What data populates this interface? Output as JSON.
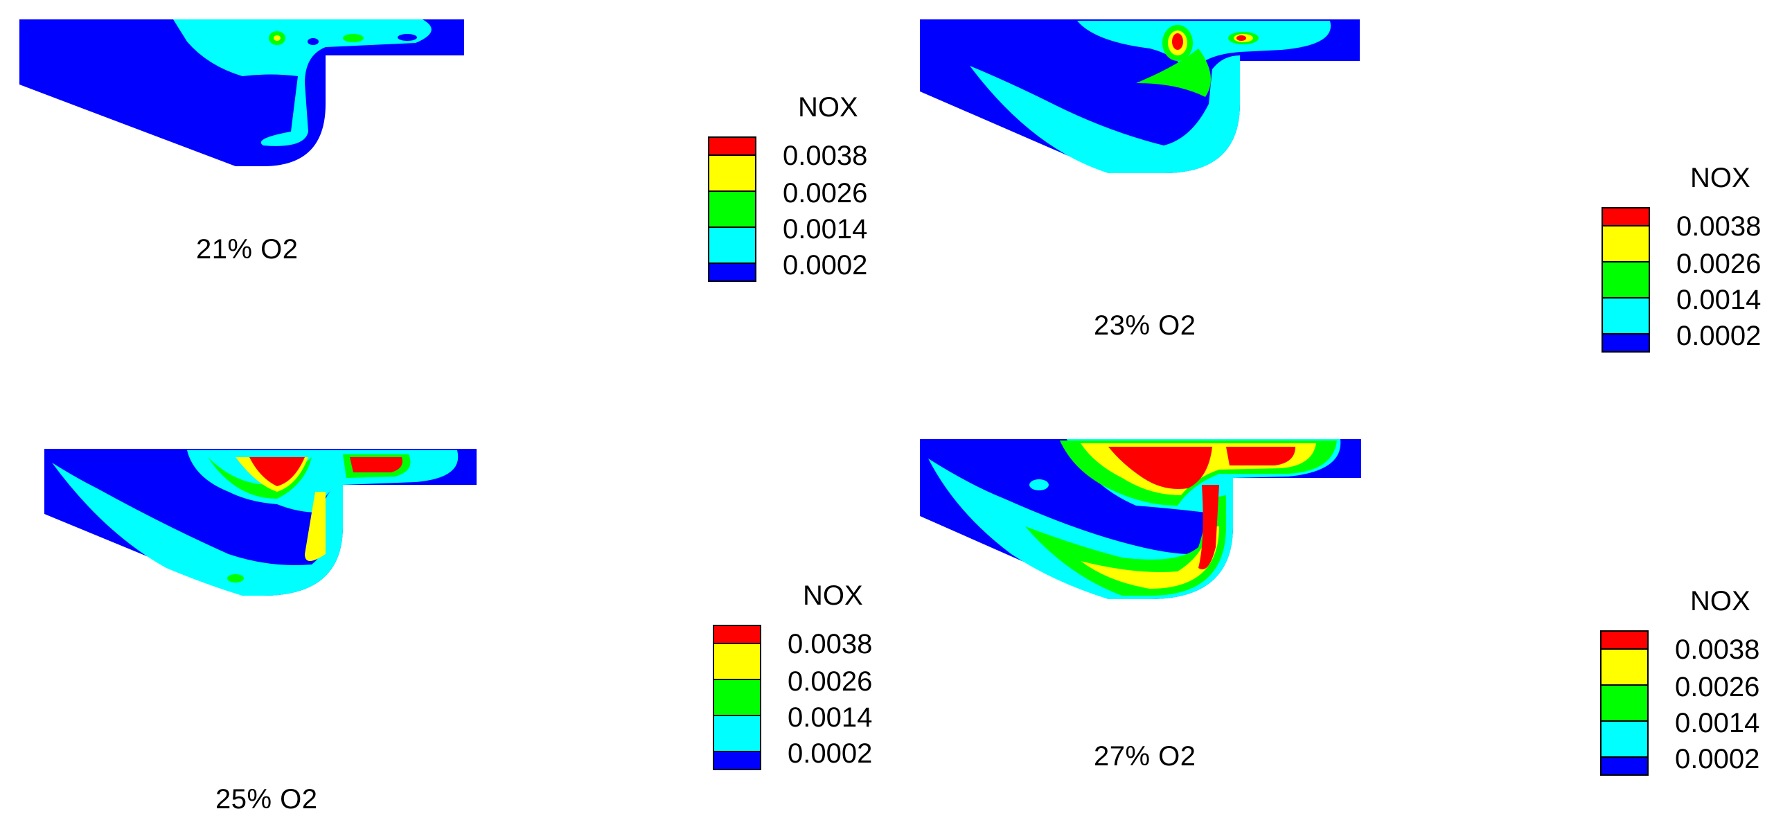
{
  "colors": {
    "bg": "#0000ff",
    "low": "#00ffff",
    "mid": "#00ff00",
    "high": "#ffff00",
    "max": "#ff0000"
  },
  "legend": {
    "title": "NOX",
    "levels": [
      "0.0038",
      "0.0026",
      "0.0014",
      "0.0002"
    ]
  },
  "panels": [
    {
      "caption": "21% O2"
    },
    {
      "caption": "23% O2"
    },
    {
      "caption": "25% O2"
    },
    {
      "caption": "27% O2"
    }
  ]
}
